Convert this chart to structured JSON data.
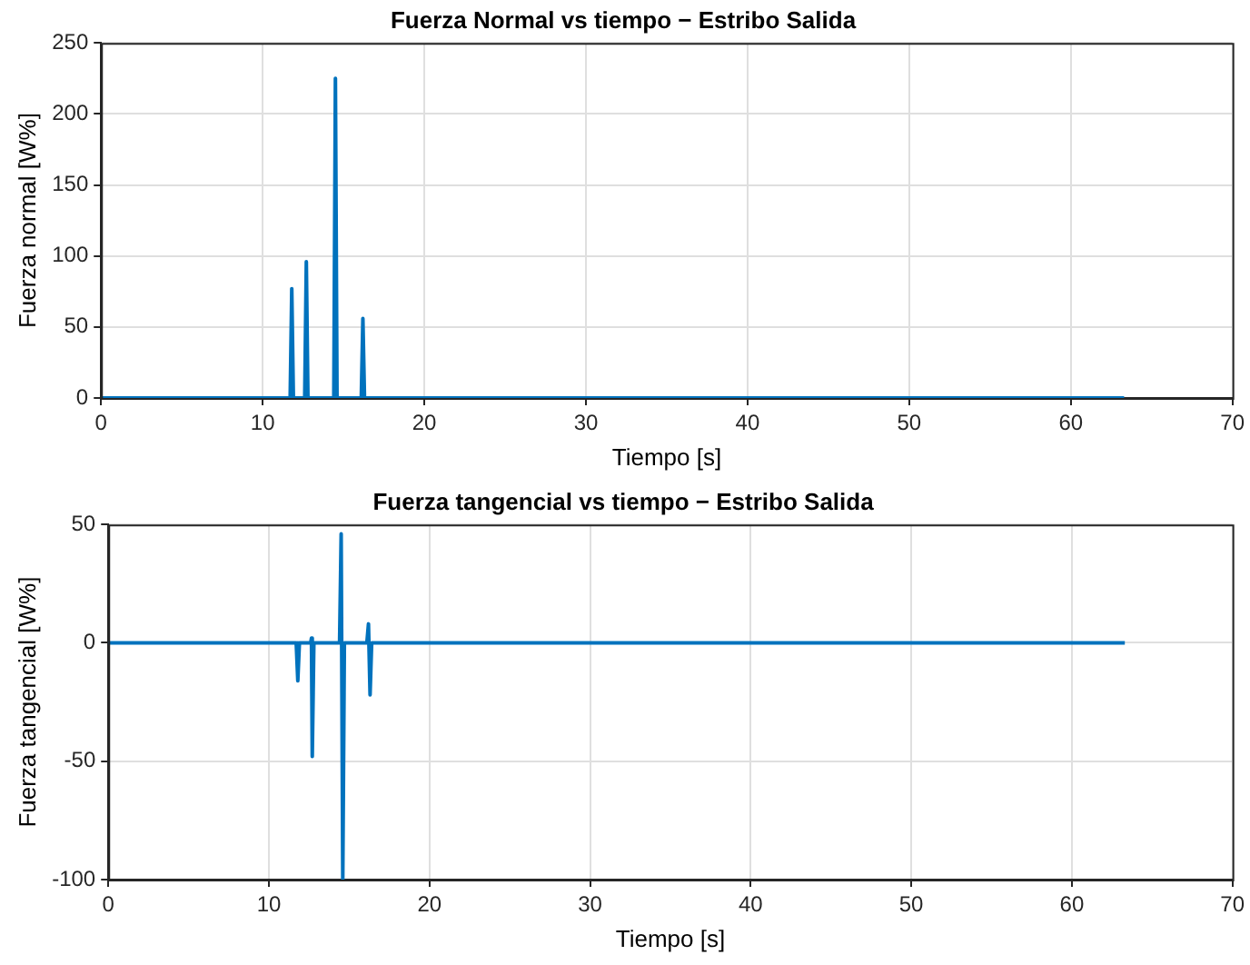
{
  "chart_data": [
    {
      "type": "line",
      "title": "Fuerza Normal vs tiempo − Estribo Salida",
      "xlabel": "Tiempo [s]",
      "ylabel": "Fuerza normal [W%]",
      "xlim": [
        0,
        70
      ],
      "xticks": [
        0,
        10,
        20,
        30,
        40,
        50,
        60,
        70
      ],
      "ylim": [
        0,
        250
      ],
      "yticks": [
        0,
        50,
        100,
        150,
        200,
        250
      ],
      "grid": true,
      "legend": false,
      "series": [
        {
          "color": "#0072bd",
          "x": [
            0,
            11.7,
            11.8,
            11.9,
            12.6,
            12.7,
            12.8,
            14.4,
            14.5,
            14.6,
            16.1,
            16.2,
            16.3,
            63.3
          ],
          "values": [
            0,
            0,
            77,
            0,
            0,
            96,
            0,
            0,
            225,
            0,
            0,
            56,
            0,
            0
          ]
        }
      ]
    },
    {
      "type": "line",
      "title": "Fuerza tangencial vs tiempo − Estribo Salida",
      "xlabel": "Tiempo [s]",
      "ylabel": "Fuerza tangencial [W%]",
      "xlim": [
        0,
        70
      ],
      "xticks": [
        0,
        10,
        20,
        30,
        40,
        50,
        60,
        70
      ],
      "ylim": [
        -100,
        50
      ],
      "yticks": [
        -100,
        -50,
        0,
        50
      ],
      "grid": true,
      "legend": false,
      "series": [
        {
          "color": "#0072bd",
          "x": [
            0,
            11.7,
            11.8,
            11.9,
            12.6,
            12.65,
            12.7,
            12.8,
            14.4,
            14.5,
            14.6,
            14.7,
            16.1,
            16.2,
            16.3,
            16.4,
            63.3
          ],
          "values": [
            0,
            0,
            -16,
            0,
            0,
            2,
            -48,
            0,
            0,
            46,
            -100,
            0,
            0,
            8,
            -22,
            0,
            0
          ]
        }
      ]
    }
  ]
}
